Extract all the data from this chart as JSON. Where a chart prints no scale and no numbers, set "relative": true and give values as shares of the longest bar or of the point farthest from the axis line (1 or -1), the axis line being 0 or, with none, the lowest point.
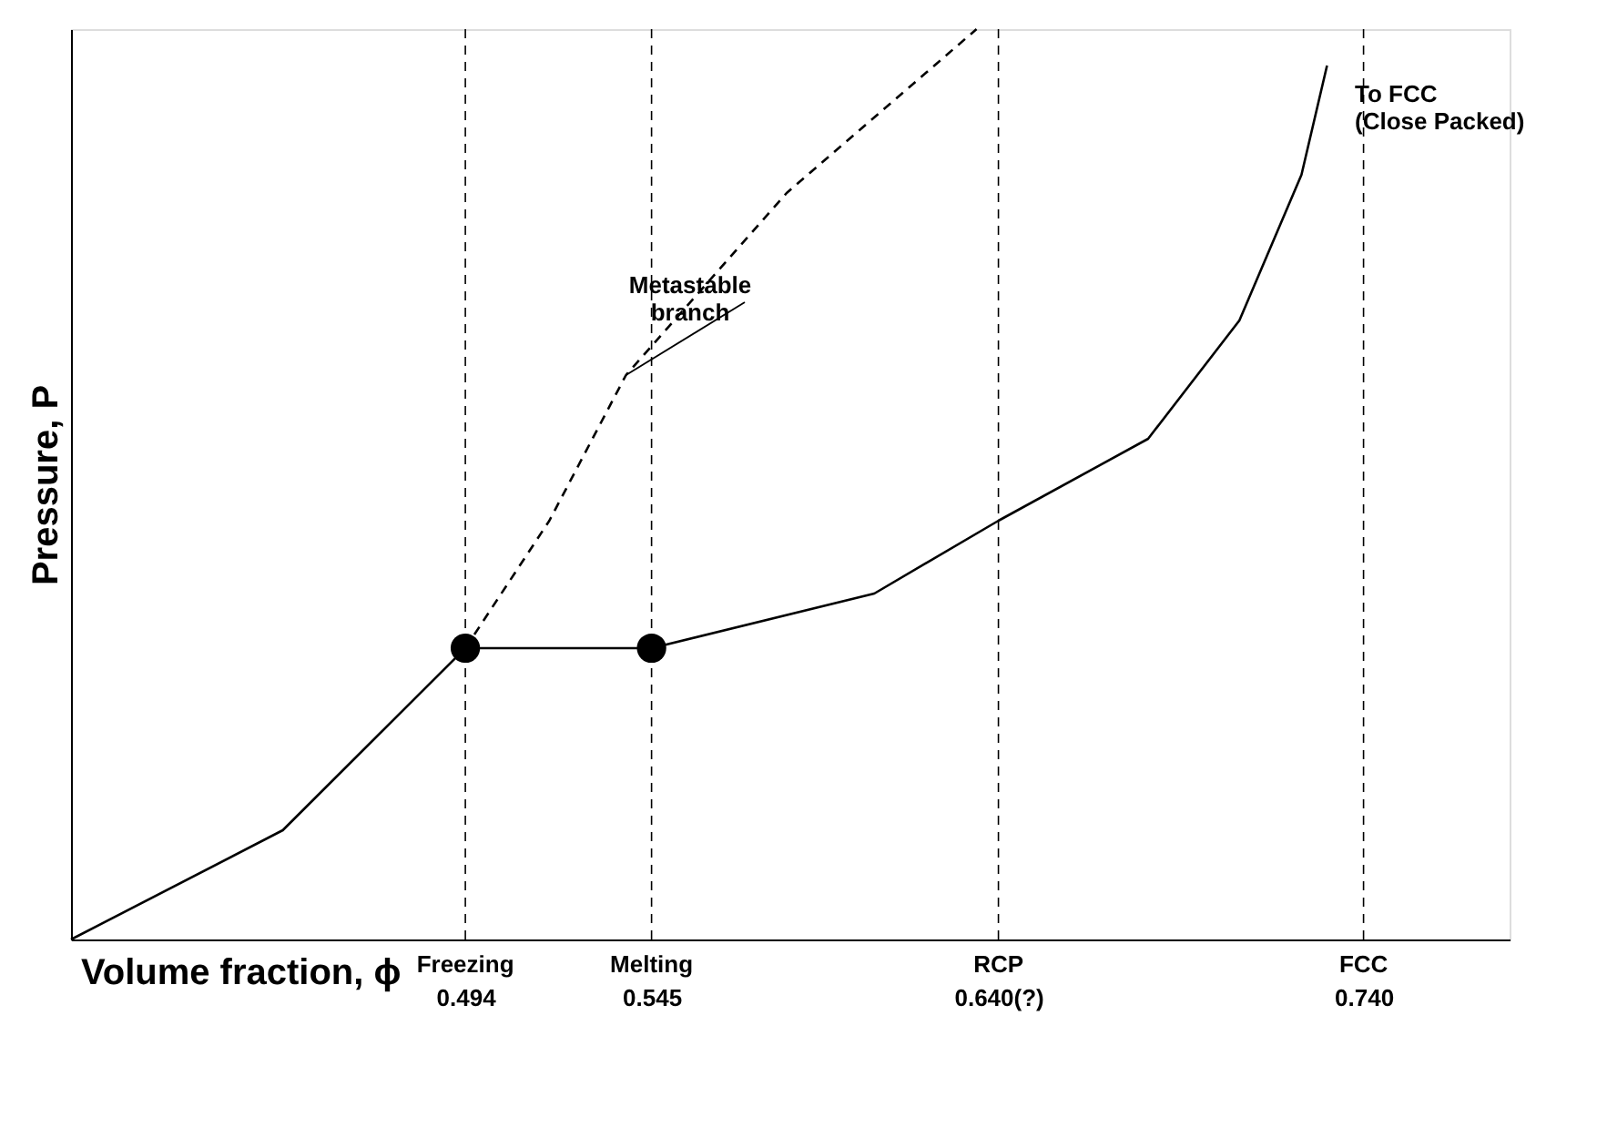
{
  "chart_data": {
    "type": "line",
    "relative": true,
    "xlabel": "Volume fraction, ϕ",
    "ylabel": "Pressure, P",
    "xlim": [
      0.386,
      0.78
    ],
    "xticks": [
      0.494,
      0.545,
      {
        "value": 0.64,
        "label": "0.640(?)"
      },
      {
        "value": 0.74,
        "label": "0.740"
      }
    ],
    "series": [
      {
        "type": "line",
        "color": "#000000",
        "line_style": "solid",
        "marker": "none",
        "x": [
          0.386,
          0.444,
          0.494,
          0.545,
          0.606,
          0.64,
          0.681,
          0.706,
          0.723,
          0.73
        ],
        "values": [
          0,
          0.12,
          0.32,
          0.32,
          0.38,
          0.46,
          0.55,
          0.68,
          0.84,
          0.96
        ]
      },
      {
        "type": "line",
        "color": "#000000",
        "line_style": "dashed",
        "marker": "none",
        "x": [
          0.494,
          0.517,
          0.538,
          0.582,
          0.634
        ],
        "values": [
          0.32,
          0.46,
          0.62,
          0.82,
          1.0
        ]
      },
      {
        "type": "scatter",
        "color": "#000000",
        "marker": "circle",
        "x": [
          0.494,
          0.545
        ],
        "values": [
          0.32,
          0.32
        ]
      }
    ],
    "ref_lines": [
      {
        "axis": "x",
        "value": 0.494,
        "line_style": "dashed",
        "color": "#000000"
      },
      {
        "axis": "x",
        "value": 0.545,
        "line_style": "dashed",
        "color": "#000000"
      },
      {
        "axis": "x",
        "value": 0.64,
        "line_style": "dashed",
        "color": "#000000"
      },
      {
        "axis": "x",
        "value": 0.74,
        "line_style": "dashed",
        "color": "#000000"
      }
    ],
    "annotations": [
      {
        "text": "Metastable\nbranch",
        "x": 0.538,
        "y": 0.62
      },
      {
        "text": "Freezing",
        "x": 0.494,
        "y": 0
      },
      {
        "text": "Melting",
        "x": 0.545,
        "y": 0
      },
      {
        "text": "RCP",
        "x": 0.64,
        "y": 0
      },
      {
        "text": "FCC",
        "x": 0.74,
        "y": 0
      },
      "To FCC\n(Close Packed)"
    ],
    "grid": false
  }
}
